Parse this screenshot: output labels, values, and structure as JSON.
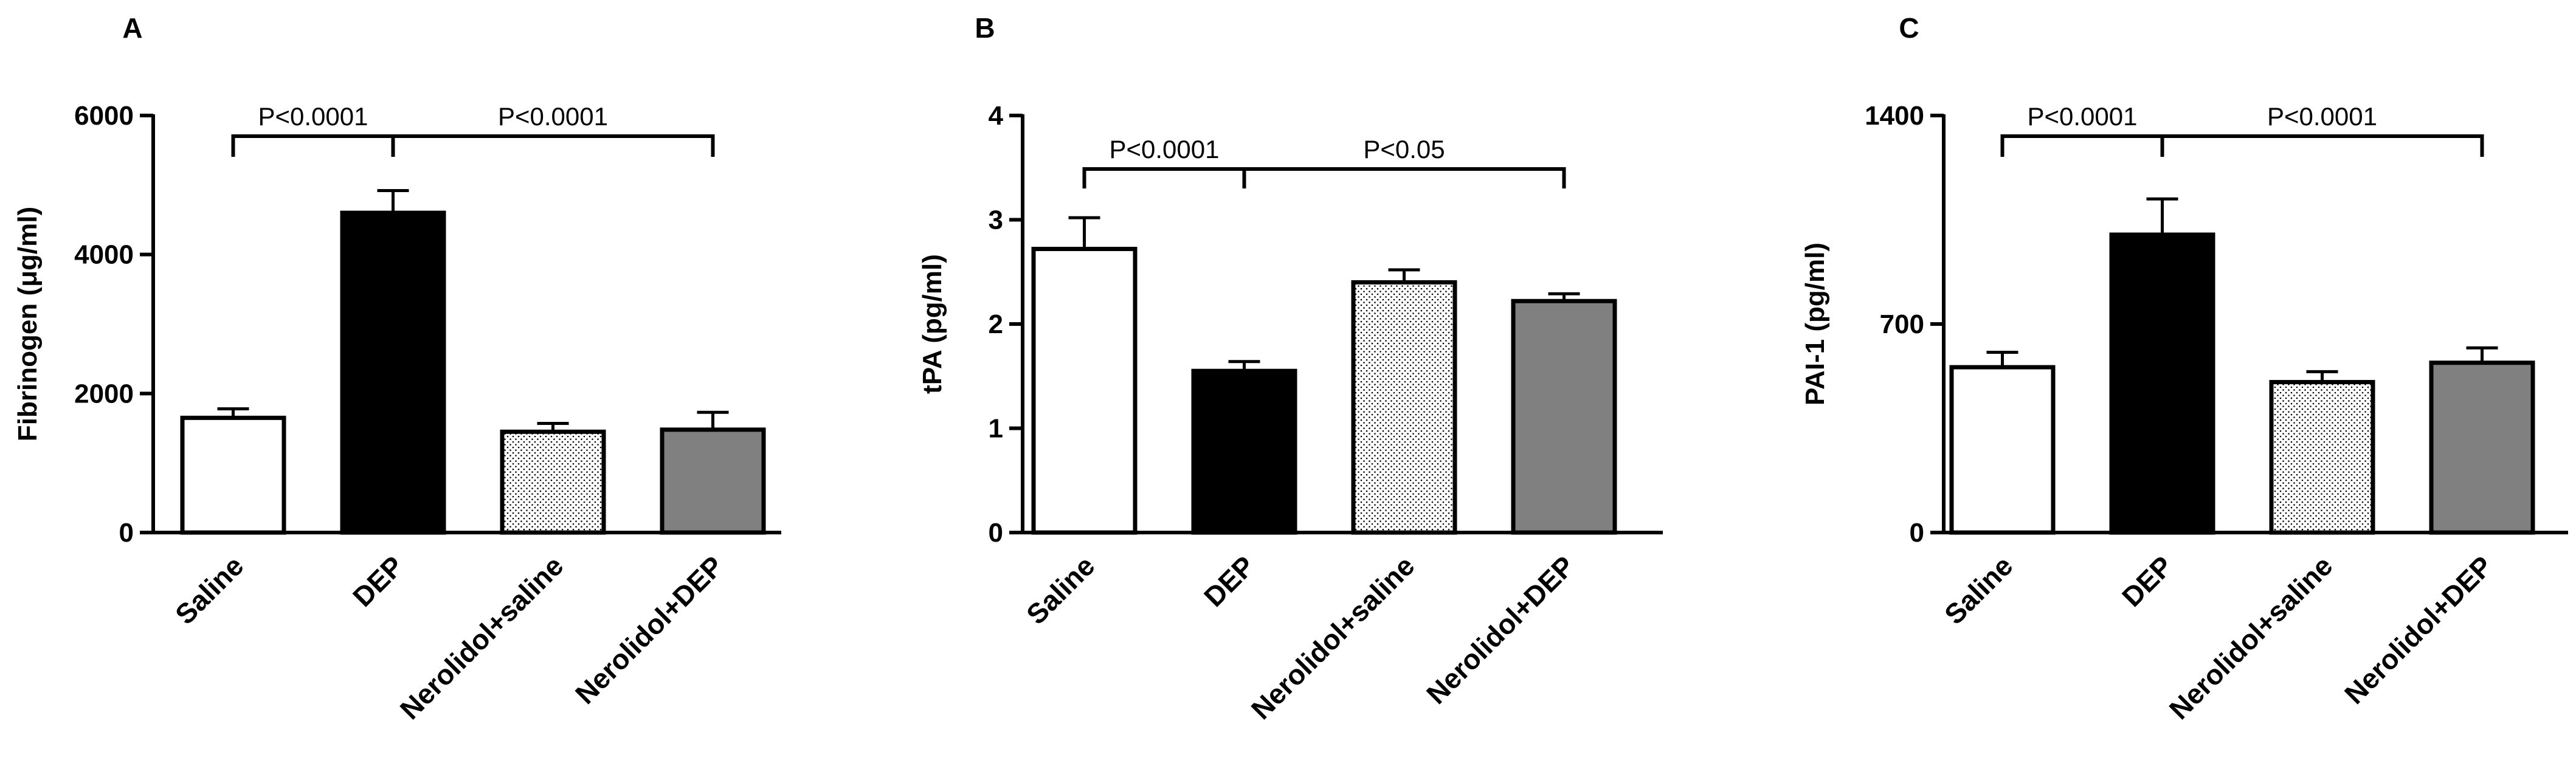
{
  "chart_data": [
    {
      "type": "bar",
      "panel": "A",
      "title": "",
      "ylabel": "Fibrinogen (μg/ml)",
      "xlabel": "",
      "categories": [
        "Saline",
        "DEP",
        "Nerolidol+saline",
        "Nerolidol+DEP"
      ],
      "values": [
        1650,
        4600,
        1450,
        1480
      ],
      "errors": [
        130,
        320,
        120,
        250
      ],
      "ylim": [
        0,
        6000
      ],
      "yticks": [
        0,
        2000,
        4000,
        6000
      ],
      "grid": false,
      "bar_styles": [
        "white",
        "black",
        "dotted",
        "gray"
      ],
      "significance": [
        {
          "from": 0,
          "to": 1,
          "label": "P<0.0001"
        },
        {
          "from": 1,
          "to": 3,
          "label": "P<0.0001"
        }
      ]
    },
    {
      "type": "bar",
      "panel": "B",
      "title": "",
      "ylabel": "tPA (pg/ml)",
      "xlabel": "",
      "categories": [
        "Saline",
        "DEP",
        "Nerolidol+saline",
        "Nerolidol+DEP"
      ],
      "values": [
        2.72,
        1.55,
        2.4,
        2.22
      ],
      "errors": [
        0.3,
        0.09,
        0.12,
        0.07
      ],
      "ylim": [
        0,
        4
      ],
      "yticks": [
        0,
        1,
        2,
        3,
        4
      ],
      "grid": false,
      "bar_styles": [
        "white",
        "black",
        "dotted",
        "gray"
      ],
      "significance": [
        {
          "from": 0,
          "to": 1,
          "label": "P<0.0001"
        },
        {
          "from": 1,
          "to": 3,
          "label": "P<0.05"
        }
      ]
    },
    {
      "type": "bar",
      "panel": "C",
      "title": "",
      "ylabel": "PAI-1 (pg/ml)",
      "xlabel": "",
      "categories": [
        "Saline",
        "DEP",
        "Nerolidol+saline",
        "Nerolidol+DEP"
      ],
      "values": [
        555,
        1000,
        505,
        570
      ],
      "errors": [
        50,
        120,
        35,
        50
      ],
      "ylim": [
        0,
        1400
      ],
      "yticks": [
        0,
        700,
        1400
      ],
      "grid": false,
      "bar_styles": [
        "white",
        "black",
        "dotted",
        "gray"
      ],
      "significance": [
        {
          "from": 0,
          "to": 1,
          "label": "P<0.0001"
        },
        {
          "from": 1,
          "to": 3,
          "label": "P<0.0001"
        }
      ]
    }
  ],
  "colors": {
    "axis": "#000000",
    "bar_white": "#ffffff",
    "bar_black": "#000000",
    "bar_gray": "#808080",
    "dot": "#000000"
  }
}
